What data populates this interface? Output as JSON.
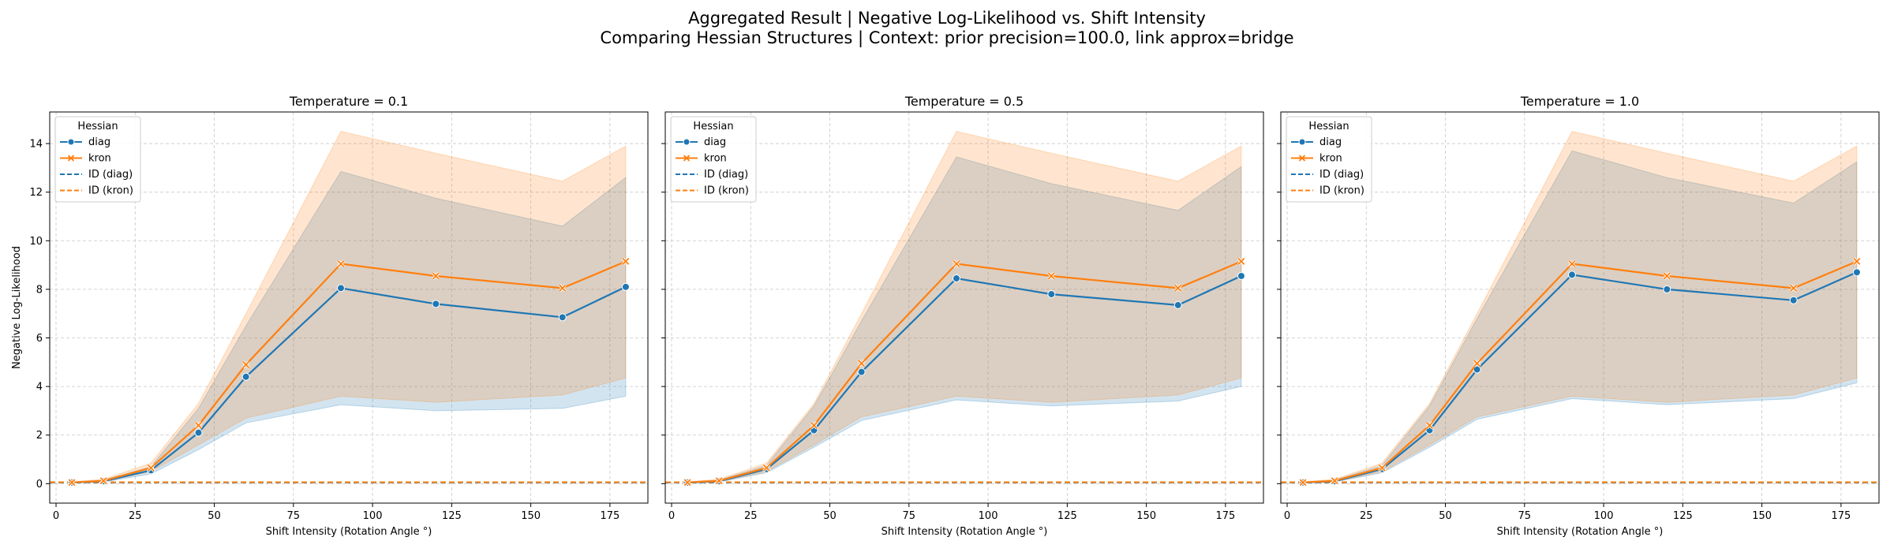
{
  "figure": {
    "title_line1": "Aggregated Result | Negative Log-Likelihood vs. Shift Intensity",
    "title_line2": "Comparing Hessian Structures | Context: prior precision=100.0, link approx=bridge"
  },
  "colors": {
    "diag": "#1f77b4",
    "kron": "#ff7f0e"
  },
  "chart_data": [
    {
      "type": "line",
      "title": "Temperature = 0.1",
      "xlabel": "Shift Intensity (Rotation Angle °)",
      "ylabel": "Negative Log-Likelihood",
      "xlim": [
        -2,
        187
      ],
      "ylim": [
        -0.8,
        15.3
      ],
      "xticks": [
        0,
        25,
        50,
        75,
        100,
        125,
        150,
        175
      ],
      "yticks": [
        0,
        2,
        4,
        6,
        8,
        10,
        12,
        14
      ],
      "grid": true,
      "legend": {
        "title": "Hessian",
        "placement": "top-left",
        "entries": [
          "diag",
          "kron",
          "ID (diag)",
          "ID (kron)"
        ]
      },
      "x": [
        5,
        15,
        30,
        45,
        60,
        90,
        120,
        160,
        180
      ],
      "series": [
        {
          "name": "diag",
          "marker": "circle",
          "values": [
            0.05,
            0.1,
            0.55,
            2.1,
            4.4,
            8.05,
            7.4,
            6.85,
            8.1
          ],
          "lower": [
            0.03,
            0.07,
            0.4,
            1.4,
            2.5,
            3.25,
            3.0,
            3.1,
            3.6
          ],
          "upper": [
            0.07,
            0.15,
            0.7,
            3.1,
            6.5,
            12.85,
            11.75,
            10.6,
            12.6
          ]
        },
        {
          "name": "kron",
          "marker": "x",
          "values": [
            0.05,
            0.12,
            0.65,
            2.4,
            4.9,
            9.05,
            8.55,
            8.05,
            9.15
          ],
          "lower": [
            0.03,
            0.08,
            0.5,
            1.6,
            2.7,
            3.6,
            3.35,
            3.65,
            4.35
          ],
          "upper": [
            0.08,
            0.18,
            0.85,
            3.3,
            7.0,
            14.5,
            13.6,
            12.45,
            13.9
          ]
        }
      ],
      "baselines": [
        {
          "name": "ID (diag)",
          "value": 0.05
        },
        {
          "name": "ID (kron)",
          "value": 0.06
        }
      ]
    },
    {
      "type": "line",
      "title": "Temperature = 0.5",
      "xlabel": "Shift Intensity (Rotation Angle °)",
      "ylabel": "",
      "xlim": [
        -2,
        187
      ],
      "ylim": [
        -0.8,
        15.3
      ],
      "xticks": [
        0,
        25,
        50,
        75,
        100,
        125,
        150,
        175
      ],
      "yticks": [
        0,
        2,
        4,
        6,
        8,
        10,
        12,
        14
      ],
      "grid": true,
      "legend": {
        "title": "Hessian",
        "placement": "top-left",
        "entries": [
          "diag",
          "kron",
          "ID (diag)",
          "ID (kron)"
        ]
      },
      "x": [
        5,
        15,
        30,
        45,
        60,
        90,
        120,
        160,
        180
      ],
      "series": [
        {
          "name": "diag",
          "marker": "circle",
          "values": [
            0.05,
            0.1,
            0.6,
            2.2,
            4.6,
            8.45,
            7.8,
            7.35,
            8.55
          ],
          "lower": [
            0.03,
            0.07,
            0.45,
            1.5,
            2.6,
            3.45,
            3.2,
            3.4,
            4.0
          ],
          "upper": [
            0.07,
            0.15,
            0.75,
            3.2,
            6.7,
            13.45,
            12.35,
            11.25,
            13.05
          ]
        },
        {
          "name": "kron",
          "marker": "x",
          "values": [
            0.05,
            0.12,
            0.65,
            2.4,
            4.95,
            9.05,
            8.55,
            8.05,
            9.15
          ],
          "lower": [
            0.03,
            0.08,
            0.5,
            1.6,
            2.75,
            3.6,
            3.35,
            3.65,
            4.35
          ],
          "upper": [
            0.08,
            0.18,
            0.85,
            3.3,
            7.0,
            14.5,
            13.6,
            12.45,
            13.9
          ]
        }
      ],
      "baselines": [
        {
          "name": "ID (diag)",
          "value": 0.05
        },
        {
          "name": "ID (kron)",
          "value": 0.06
        }
      ]
    },
    {
      "type": "line",
      "title": "Temperature = 1.0",
      "xlabel": "Shift Intensity (Rotation Angle °)",
      "ylabel": "",
      "xlim": [
        -2,
        187
      ],
      "ylim": [
        -0.8,
        15.3
      ],
      "xticks": [
        0,
        25,
        50,
        75,
        100,
        125,
        150,
        175
      ],
      "yticks": [
        0,
        2,
        4,
        6,
        8,
        10,
        12,
        14
      ],
      "grid": true,
      "legend": {
        "title": "Hessian",
        "placement": "top-left",
        "entries": [
          "diag",
          "kron",
          "ID (diag)",
          "ID (kron)"
        ]
      },
      "x": [
        5,
        15,
        30,
        45,
        60,
        90,
        120,
        160,
        180
      ],
      "series": [
        {
          "name": "diag",
          "marker": "circle",
          "values": [
            0.05,
            0.1,
            0.6,
            2.2,
            4.7,
            8.6,
            8.0,
            7.55,
            8.7
          ],
          "lower": [
            0.03,
            0.07,
            0.45,
            1.5,
            2.65,
            3.5,
            3.25,
            3.5,
            4.15
          ],
          "upper": [
            0.07,
            0.15,
            0.75,
            3.2,
            6.8,
            13.7,
            12.6,
            11.55,
            13.25
          ]
        },
        {
          "name": "kron",
          "marker": "x",
          "values": [
            0.05,
            0.12,
            0.65,
            2.4,
            4.95,
            9.05,
            8.55,
            8.05,
            9.15
          ],
          "lower": [
            0.03,
            0.08,
            0.5,
            1.6,
            2.75,
            3.6,
            3.35,
            3.65,
            4.35
          ],
          "upper": [
            0.08,
            0.18,
            0.85,
            3.3,
            7.0,
            14.5,
            13.6,
            12.45,
            13.9
          ]
        }
      ],
      "baselines": [
        {
          "name": "ID (diag)",
          "value": 0.05
        },
        {
          "name": "ID (kron)",
          "value": 0.06
        }
      ]
    }
  ]
}
